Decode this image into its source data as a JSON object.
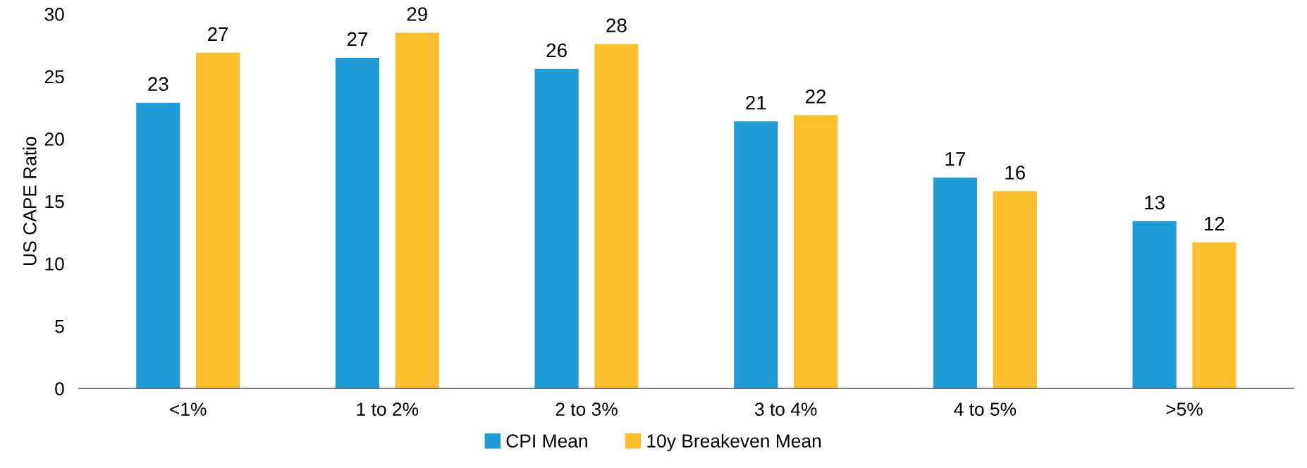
{
  "chart_data": {
    "type": "bar",
    "ylabel": "US CAPE Ratio",
    "categories": [
      "<1%",
      "1 to 2%",
      "2 to 3%",
      "3 to 4%",
      "4 to 5%",
      ">5%"
    ],
    "series": [
      {
        "name": "CPI Mean",
        "color": "#1f9bd7",
        "values": [
          22.9,
          26.5,
          25.6,
          21.4,
          16.9,
          13.4
        ],
        "value_labels": [
          "23",
          "27",
          "26",
          "21",
          "17",
          "13"
        ]
      },
      {
        "name": "10y Breakeven Mean",
        "color": "#fdbf2d",
        "values": [
          26.9,
          28.5,
          27.6,
          21.9,
          15.8,
          11.7
        ],
        "value_labels": [
          "27",
          "29",
          "28",
          "22",
          "16",
          "12"
        ]
      }
    ],
    "ylim": [
      0,
      30
    ],
    "yticks": [
      0,
      5,
      10,
      15,
      20,
      25,
      30
    ],
    "grid": false,
    "legend": "bottom"
  }
}
